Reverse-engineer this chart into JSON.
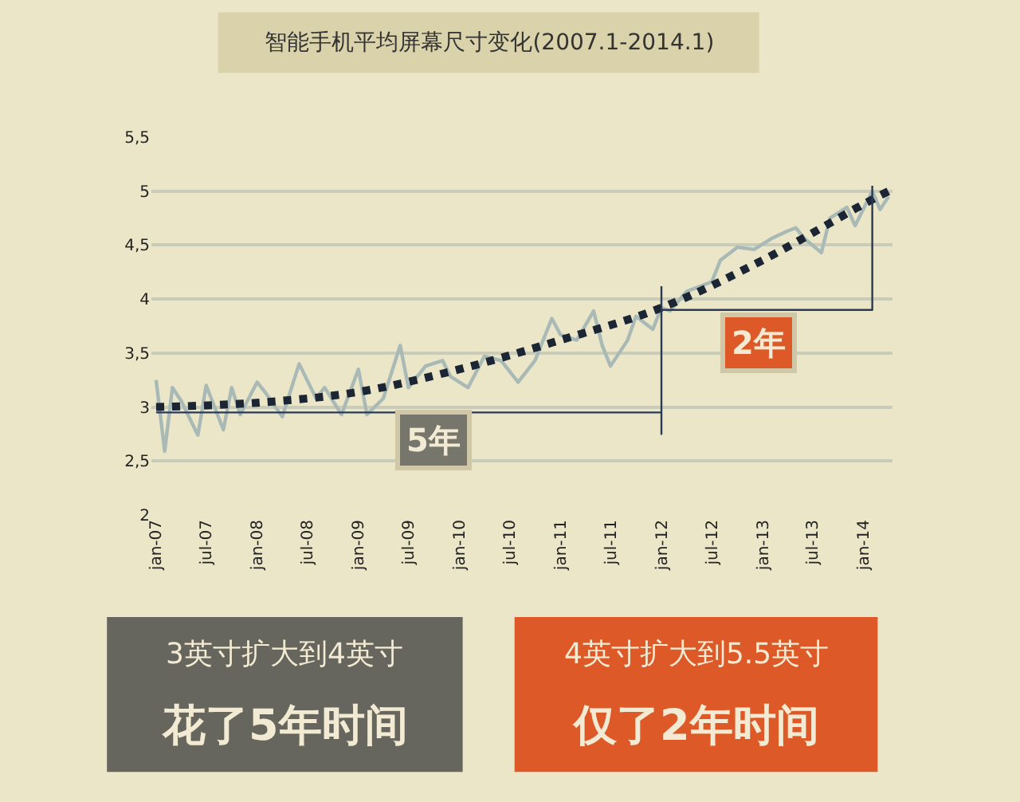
{
  "chart_data": {
    "type": "line",
    "title": "智能手机平均屏幕尺寸变化(2007.1-2014.1)",
    "xlim": [
      "2006-12-15",
      "2014-04-15"
    ],
    "xticks": [
      {
        "value": "2007-01",
        "label": "jan-07"
      },
      {
        "value": "2007-07",
        "label": "jul-07"
      },
      {
        "value": "2008-01",
        "label": "jan-08"
      },
      {
        "value": "2008-07",
        "label": "jul-08"
      },
      {
        "value": "2009-01",
        "label": "jan-09"
      },
      {
        "value": "2009-07",
        "label": "jul-09"
      },
      {
        "value": "2010-01",
        "label": "jan-10"
      },
      {
        "value": "2010-07",
        "label": "jul-10"
      },
      {
        "value": "2011-01",
        "label": "jan-11"
      },
      {
        "value": "2011-07",
        "label": "jul-11"
      },
      {
        "value": "2012-01",
        "label": "jan-12"
      },
      {
        "value": "2012-07",
        "label": "jul-12"
      },
      {
        "value": "2013-01",
        "label": "jan-13"
      },
      {
        "value": "2013-07",
        "label": "jul-13"
      },
      {
        "value": "2014-01",
        "label": "jan-14"
      }
    ],
    "ylim": [
      2,
      5.5
    ],
    "yticks": [
      2,
      {
        "value": 2.5,
        "label": "2,5"
      },
      3,
      {
        "value": 3.5,
        "label": "3,5"
      },
      4,
      {
        "value": 4.5,
        "label": "4,5"
      },
      5,
      {
        "value": 5.5,
        "label": "5,5"
      }
    ],
    "grid": "y",
    "series": [
      {
        "color": "#a9b9b6",
        "line_style": "solid",
        "x": [
          "2007-01",
          "2007-02",
          "2007-03",
          "2007-04",
          "2007-06",
          "2007-07",
          "2007-09",
          "2007-10",
          "2007-11",
          "2008-01",
          "2008-02",
          "2008-04",
          "2008-06",
          "2008-08",
          "2008-09",
          "2008-11",
          "2009-01",
          "2009-02",
          "2009-04",
          "2009-06",
          "2009-07",
          "2009-09",
          "2009-11",
          "2009-12",
          "2010-02",
          "2010-04",
          "2010-06",
          "2010-08",
          "2010-10",
          "2010-12",
          "2011-01",
          "2011-03",
          "2011-05",
          "2011-06",
          "2011-07",
          "2011-09",
          "2011-10",
          "2011-12",
          "2012-01",
          "2012-02",
          "2012-04",
          "2012-07",
          "2012-08",
          "2012-10",
          "2012-12",
          "2013-02",
          "2013-04",
          "2013-05",
          "2013-06",
          "2013-08",
          "2013-09",
          "2013-11",
          "2013-12",
          "2014-02",
          "2014-03",
          "2014-04"
        ],
        "values": [
          3.25,
          2.59,
          3.18,
          3.06,
          2.74,
          3.2,
          2.79,
          3.18,
          2.93,
          3.23,
          3.13,
          2.91,
          3.4,
          3.08,
          3.18,
          2.93,
          3.35,
          2.93,
          3.08,
          3.57,
          3.18,
          3.38,
          3.43,
          3.28,
          3.18,
          3.47,
          3.43,
          3.23,
          3.43,
          3.82,
          3.67,
          3.62,
          3.89,
          3.57,
          3.38,
          3.62,
          3.84,
          3.72,
          3.92,
          3.89,
          4.07,
          4.16,
          4.36,
          4.48,
          4.46,
          4.56,
          4.63,
          4.66,
          4.56,
          4.43,
          4.75,
          4.85,
          4.68,
          5.0,
          4.83,
          4.95
        ]
      },
      {
        "color": "#1b2533",
        "line_style": "dotted",
        "x": [
          "2007-01",
          "2008-01",
          "2009-01",
          "2010-01",
          "2011-01",
          "2012-01",
          "2013-01",
          "2014-01",
          "2014-04"
        ],
        "values": [
          3.0,
          3.04,
          3.14,
          3.35,
          3.62,
          3.92,
          4.36,
          4.88,
          5.0
        ]
      },
      {
        "color": "#2b3a55",
        "line_style": "solid",
        "x": [
          "2007-01",
          "2012-01",
          "2012-01",
          "2012-01"
        ],
        "values": [
          2.95,
          2.95,
          2.75,
          4.12
        ]
      },
      {
        "color": "#2b3a55",
        "line_style": "solid",
        "x": [
          "2012-01",
          "2014-02",
          "2014-02"
        ],
        "values": [
          3.9,
          3.9,
          5.05
        ]
      }
    ],
    "annotations": [
      "5年",
      "2年",
      "3英寸扩大到4英寸",
      "花了5年时间",
      "4英寸扩大到5.5英寸",
      "仅了2年时间"
    ]
  }
}
